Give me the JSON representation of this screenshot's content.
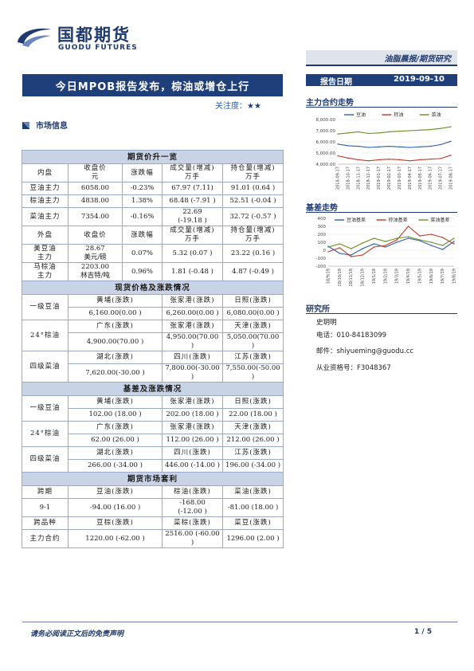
{
  "header": {
    "logo_cn": "国都期货",
    "logo_en": "GUODU FUTURES",
    "category": "油脂晨报/期货研究",
    "date_label": "报告日期",
    "date": "2019-09-10"
  },
  "title": "今日MPOB报告发布，棕油或增仓上行",
  "attention": {
    "label": "关注度：",
    "stars": "★★"
  },
  "section_market": "市场信息",
  "futures": {
    "title": "期货价升一览",
    "domestic_headers": [
      "内盘",
      "收盘价元",
      "涨跌幅",
      "成交量(增减)万手",
      "持仓量(增减)万手"
    ],
    "domestic_header_lines": [
      [
        "内盘"
      ],
      [
        "收盘价",
        "元"
      ],
      [
        "涨跌幅"
      ],
      [
        "成交量(增减)",
        "万手"
      ],
      [
        "持仓量(增减)",
        "万手"
      ]
    ],
    "domestic_rows": [
      {
        "name": "豆油主力",
        "close": "6058.00",
        "chg": "-0.23%",
        "vol": "67.97 (7.11)",
        "oi": "91.01 (0.64 )"
      },
      {
        "name": "棕油主力",
        "close": "4838.00",
        "chg": "1.38%",
        "vol": "68.48 (-7.91 )",
        "oi": "52.51 (-0.04 )"
      },
      {
        "name": "菜油主力",
        "close": "7354.00",
        "chg": "-0.16%",
        "vol": "22.69\n(-19.18 )",
        "oi": "32.72 (-0.57 )"
      }
    ],
    "foreign_header_lines": [
      [
        "外盘"
      ],
      [
        "收盘价"
      ],
      [
        "涨跌幅"
      ],
      [
        "成交量(增减)",
        "万手"
      ],
      [
        "持仓量(增减)",
        "万手"
      ]
    ],
    "foreign_rows": [
      {
        "name": [
          "美豆油",
          "主力"
        ],
        "close": [
          "28.67",
          "美元/磅"
        ],
        "chg": "0.07%",
        "vol": "5.32 (0.07 )",
        "oi": "23.22 (0.16 )"
      },
      {
        "name": [
          "马棕油",
          "主力"
        ],
        "close": [
          "2203.00",
          "林吉特/吨"
        ],
        "chg": "0.96%",
        "vol": "1.81 (-0.48 )",
        "oi": "4.87 (-0.49 )"
      }
    ]
  },
  "spot": {
    "title": "现货价格及涨跌情况",
    "groups": [
      {
        "name": "一级豆油",
        "regions": [
          "黄埔(涨跌)",
          "张家港(涨跌)",
          "日照(涨跌)"
        ],
        "values": [
          "6,160.00(0.00 )",
          "6,260.00(0.00 )",
          "6,080.00(0.00 )"
        ]
      },
      {
        "name": "24°棕油",
        "regions": [
          "广东(涨跌)",
          "张家港(涨跌)",
          "天津(涨跌)"
        ],
        "values": [
          "4,900.00(70.00 )",
          "4,950.00(70.00 )",
          "5,050.00(70.00 )"
        ]
      },
      {
        "name": "四级菜油",
        "regions": [
          "湖北(涨跌)",
          "四川(涨跌)",
          "江苏(涨跌)"
        ],
        "values": [
          "7,620.00(-30.00 )",
          "7,800.00(-30.00 )",
          "7,550.00(-50.00 )"
        ]
      }
    ]
  },
  "basis": {
    "title": "基差及涨跌情况",
    "groups": [
      {
        "name": "一级豆油",
        "regions": [
          "黄埔(涨跌)",
          "张家港(涨跌)",
          "日照(涨跌)"
        ],
        "values": [
          "102.00 (18.00 )",
          "202.00 (18.00 )",
          "22.00 (18.00 )"
        ]
      },
      {
        "name": "24°棕油",
        "regions": [
          "广东(涨跌)",
          "张家港(涨跌)",
          "天津(涨跌)"
        ],
        "values": [
          "62.00 (26.00 )",
          "112.00 (26.00 )",
          "212.00 (26.00 )"
        ]
      },
      {
        "name": "四级菜油",
        "regions": [
          "湖北(涨跌)",
          "四川(涨跌)",
          "江苏(涨跌)"
        ],
        "values": [
          "266.00 (-34.00 )",
          "446.00 (-14.00 )",
          "196.00 (-34.00 )"
        ]
      }
    ]
  },
  "arbitrage": {
    "title": "期货市场套利",
    "headers": [
      "跨期",
      "豆油(涨跌)",
      "棕油(涨跌)",
      "菜油(涨跌)"
    ],
    "row1": {
      "name": "9-1",
      "values": [
        "-94.00 (16.00 )",
        "-168.00\n(-12.00 )",
        "-81.00    (18.00 )"
      ]
    },
    "headers2": [
      "跨品种",
      "豆棕(涨跌)",
      "菜棕(涨跌)",
      "菜豆(涨跌)"
    ],
    "row2": {
      "name": "主力合约",
      "values": [
        "1220.00 (-62.00 )",
        "2516.00 (-60.00 )",
        "1296.00 (2.00 )"
      ]
    }
  },
  "right": {
    "main_trend_title": "主力合约走势",
    "basis_trend_title": "基差走势",
    "research_title": "研究所",
    "analyst": "史玥明",
    "phone": "电话：010-84183099",
    "email": "邮件：shiyueming@guodu.cc",
    "license": "从业资格号：F3048367"
  },
  "footer": {
    "disclaimer": "请务必阅读正文后的免责声明",
    "page": "1 / 5"
  },
  "chart_data": [
    {
      "type": "line",
      "title": "主力合约走势",
      "x": [
        "2018-09-17",
        "2018-10-17",
        "2018-11-17",
        "2018-12-17",
        "2019-01-17",
        "2019-02-17",
        "2019-03-17",
        "2019-04-17",
        "2019-05-17",
        "2019-06-17",
        "2019-07-17",
        "2019-08-17"
      ],
      "ylim": [
        4000,
        8000
      ],
      "yticks": [
        "8,000.00",
        "7,000.00",
        "6,000.00",
        "5,000.00",
        "4,000.00"
      ],
      "legend_position": "top",
      "series": [
        {
          "name": "豆油",
          "color": "#2f5fa8",
          "values": [
            5800,
            5650,
            5600,
            5500,
            5550,
            5600,
            5550,
            5500,
            5550,
            5600,
            5750,
            6050
          ]
        },
        {
          "name": "棕油",
          "color": "#c0392b",
          "values": [
            4750,
            4550,
            4400,
            4300,
            4400,
            4450,
            4400,
            4300,
            4400,
            4450,
            4500,
            4800
          ]
        },
        {
          "name": "菜油",
          "color": "#6b8e23",
          "values": [
            6700,
            6800,
            6900,
            6750,
            6800,
            6900,
            6950,
            7000,
            7050,
            7100,
            7200,
            7350
          ]
        }
      ]
    },
    {
      "type": "line",
      "title": "基差走势",
      "x": [
        "18/9/19",
        "18/10/19",
        "18/11/19",
        "18/12/19",
        "19/1/19",
        "19/2/19",
        "19/3/19",
        "19/4/19",
        "19/5/19",
        "19/6/19",
        "19/7/19",
        "19/8/19"
      ],
      "ylim": [
        -200,
        400
      ],
      "yticks": [
        "400",
        "300",
        "200",
        "100",
        "0",
        "-100",
        "-200"
      ],
      "legend_position": "top",
      "series": [
        {
          "name": "豆油基差",
          "color": "#2f5fa8",
          "values": [
            50,
            -40,
            -60,
            20,
            80,
            40,
            100,
            150,
            120,
            60,
            10,
            110
          ]
        },
        {
          "name": "棕油基差",
          "color": "#c0392b",
          "values": [
            -20,
            30,
            -80,
            -60,
            40,
            60,
            130,
            300,
            180,
            200,
            160,
            80
          ]
        },
        {
          "name": "菜油基差",
          "color": "#6b8e23",
          "values": [
            40,
            80,
            20,
            90,
            150,
            110,
            150,
            170,
            130,
            100,
            60,
            150
          ]
        }
      ]
    }
  ]
}
